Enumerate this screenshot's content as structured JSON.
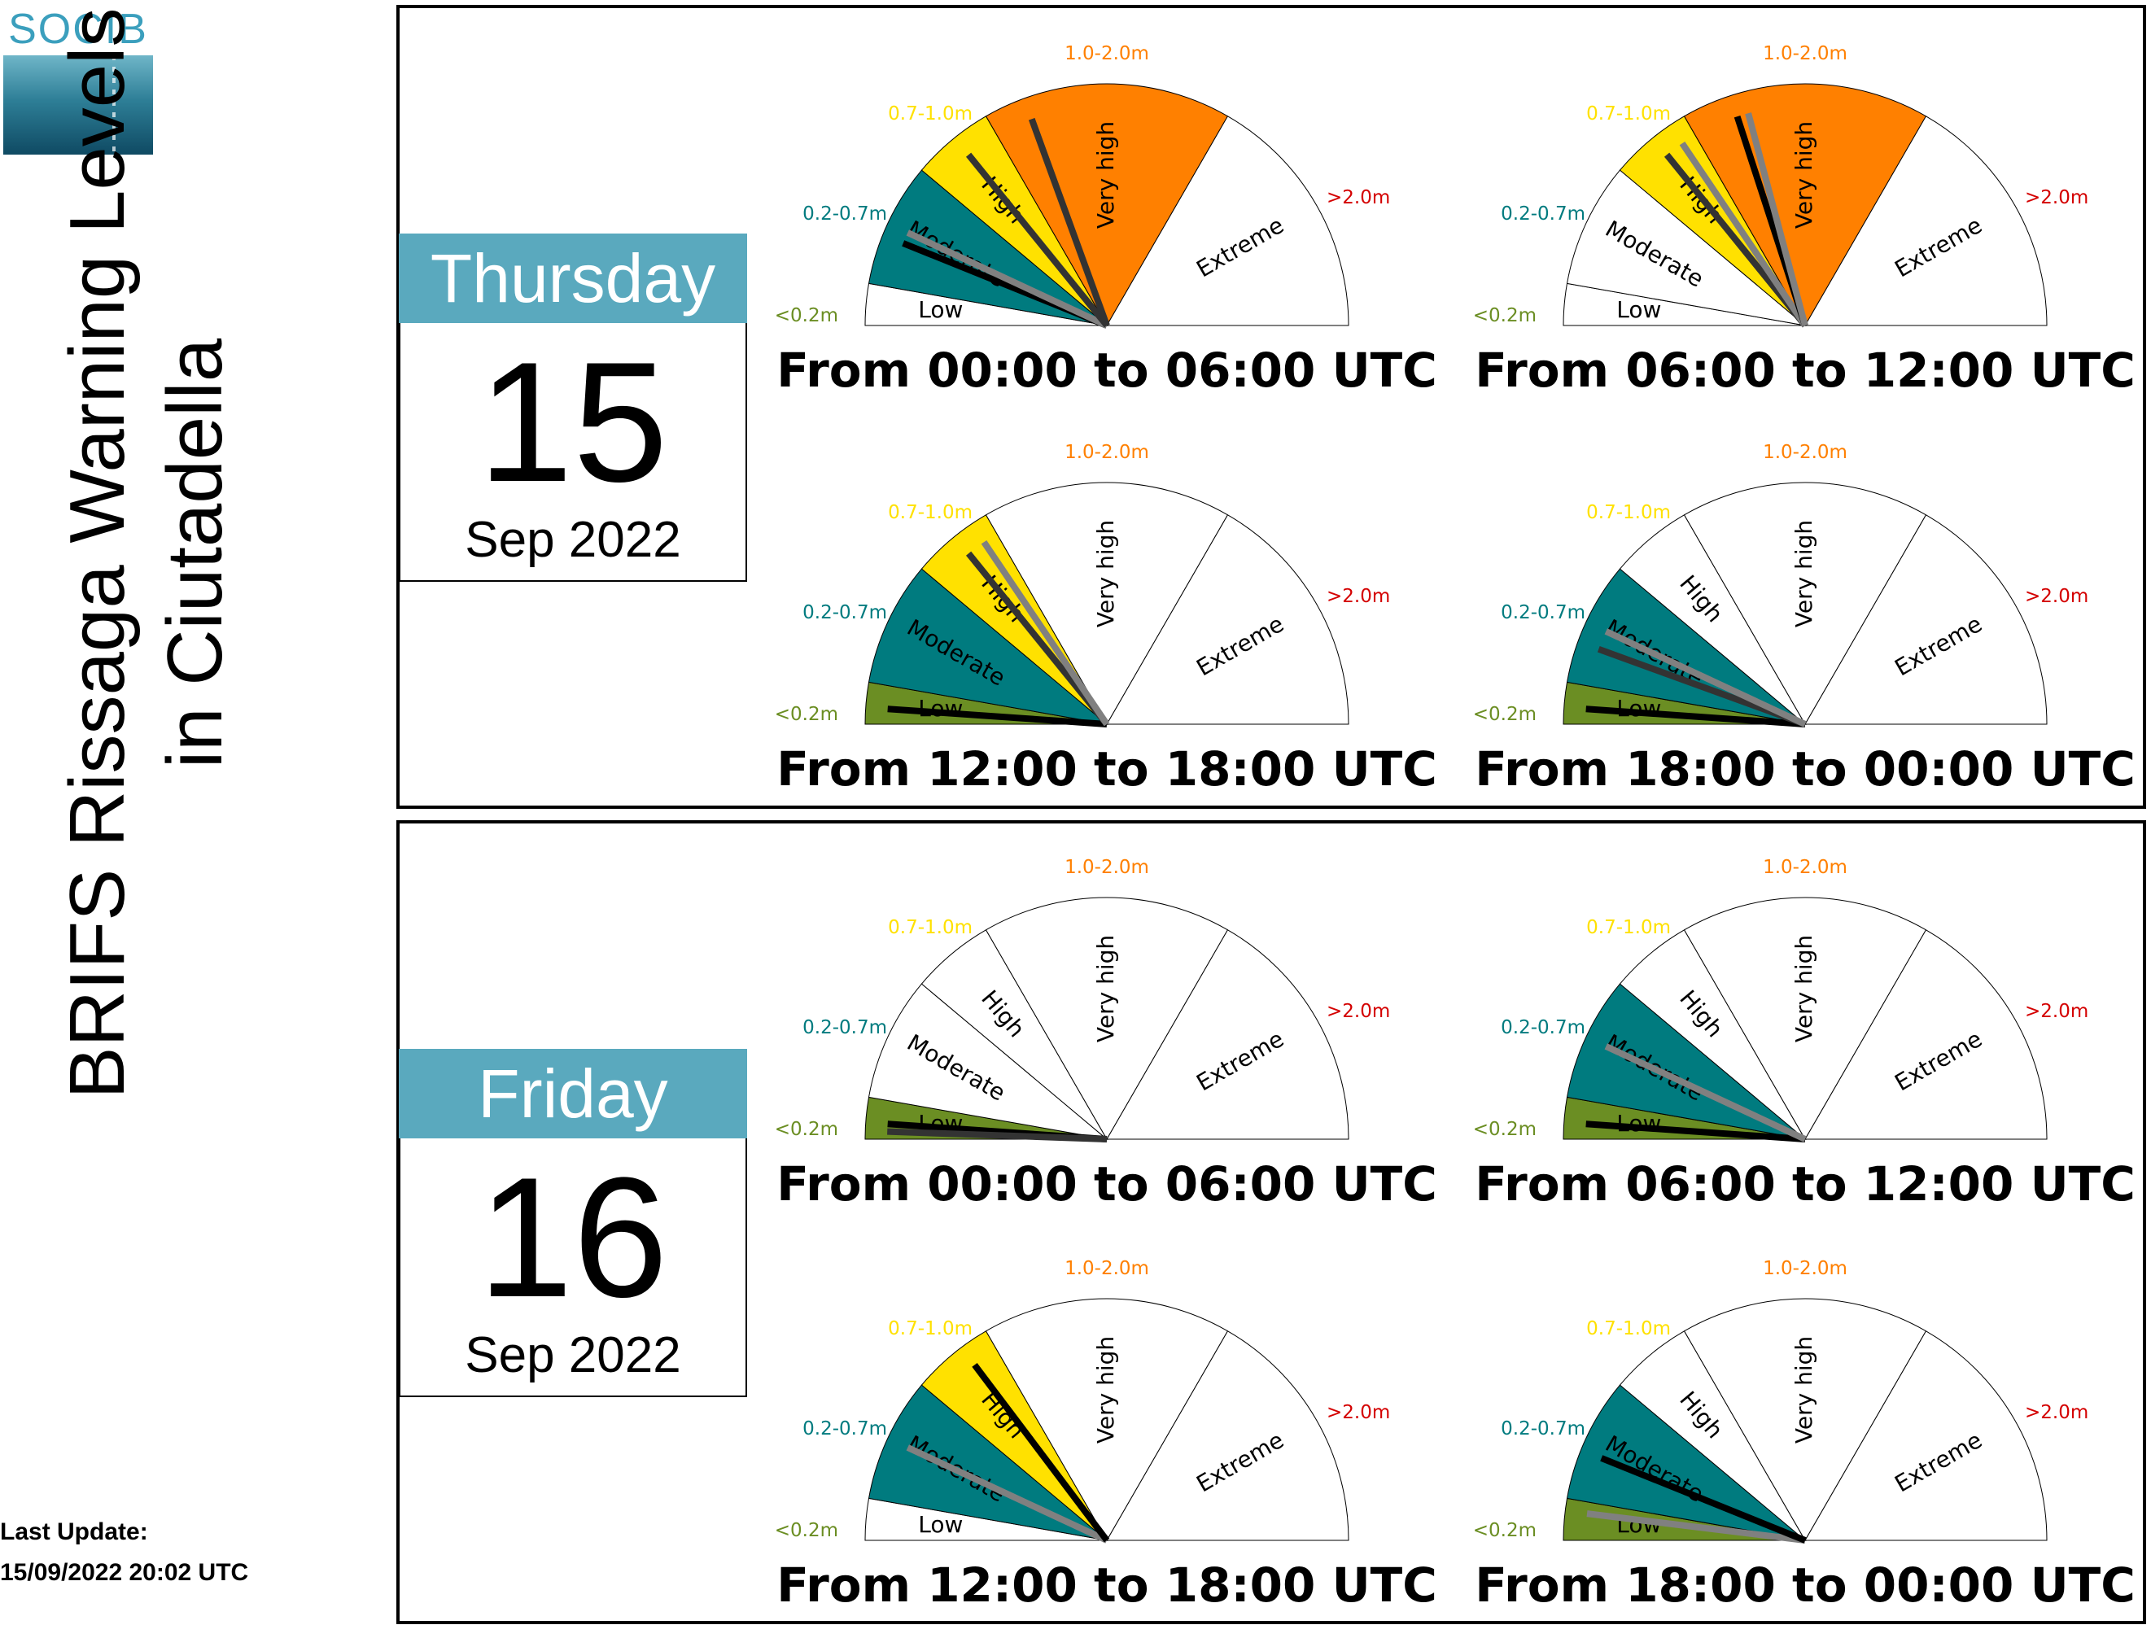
{
  "logo_text": "SOCIB",
  "title_line1": "BRIFS Rissaga Warning Levels",
  "title_line2": "in Ciutadella",
  "last_update_label": "Last Update:",
  "last_update_value": "15/09/2022 20:02 UTC",
  "colors": {
    "low": "#6b8e23",
    "moderate": "#007b7f",
    "high": "#ffe100",
    "very_high": "#ff8000",
    "extreme": "#d40000",
    "day_header": "#5aa9be",
    "needle_black": "#000000",
    "needle_dark": "#333333",
    "needle_grey": "#808080"
  },
  "chart_data": {
    "type": "gauge",
    "categories": [
      "Low",
      "Moderate",
      "High",
      "Very high",
      "Extreme"
    ],
    "thresholds": [
      "<0.2m",
      "0.2-0.7m",
      "0.7-1.0m",
      "1.0-2.0m",
      ">2.0m"
    ],
    "days": [
      {
        "name": "Thursday",
        "day": "15",
        "month_year": "Sep 2022",
        "gauges": [
          {
            "period": "From 00:00 to 06:00 UTC",
            "filled": [
              "Moderate",
              "High",
              "Very high"
            ],
            "needles": [
              {
                "level": "Moderate",
                "color": "black"
              },
              {
                "level": "Moderate",
                "color": "grey"
              },
              {
                "level": "High",
                "color": "dark"
              },
              {
                "level": "Very high",
                "color": "dark"
              }
            ]
          },
          {
            "period": "From 06:00 to 12:00 UTC",
            "filled": [
              "High",
              "Very high"
            ],
            "needles": [
              {
                "level": "High",
                "color": "dark"
              },
              {
                "level": "High",
                "color": "grey"
              },
              {
                "level": "Very high",
                "color": "black"
              },
              {
                "level": "Very high",
                "color": "grey"
              }
            ]
          },
          {
            "period": "From 12:00 to 18:00 UTC",
            "filled": [
              "Low",
              "Moderate",
              "High"
            ],
            "needles": [
              {
                "level": "Low",
                "color": "black"
              },
              {
                "level": "High",
                "color": "dark"
              },
              {
                "level": "High",
                "color": "grey"
              }
            ]
          },
          {
            "period": "From 18:00 to 00:00 UTC",
            "filled": [
              "Low",
              "Moderate"
            ],
            "needles": [
              {
                "level": "Low",
                "color": "black"
              },
              {
                "level": "Moderate",
                "color": "dark"
              },
              {
                "level": "Moderate",
                "color": "grey"
              }
            ]
          }
        ]
      },
      {
        "name": "Friday",
        "day": "16",
        "month_year": "Sep 2022",
        "gauges": [
          {
            "period": "From 00:00 to 06:00 UTC",
            "filled": [
              "Low"
            ],
            "needles": [
              {
                "level": "Low",
                "color": "black"
              },
              {
                "level": "Low",
                "color": "dark"
              }
            ]
          },
          {
            "period": "From 06:00 to 12:00 UTC",
            "filled": [
              "Low",
              "Moderate"
            ],
            "needles": [
              {
                "level": "Low",
                "color": "black"
              },
              {
                "level": "Moderate",
                "color": "grey"
              }
            ]
          },
          {
            "period": "From 12:00 to 18:00 UTC",
            "filled": [
              "Moderate",
              "High"
            ],
            "needles": [
              {
                "level": "Moderate",
                "color": "grey"
              },
              {
                "level": "High",
                "color": "black"
              }
            ]
          },
          {
            "period": "From 18:00 to 00:00 UTC",
            "filled": [
              "Low",
              "Moderate"
            ],
            "needles": [
              {
                "level": "Low",
                "color": "grey"
              },
              {
                "level": "Moderate",
                "color": "black"
              }
            ]
          }
        ]
      }
    ]
  }
}
